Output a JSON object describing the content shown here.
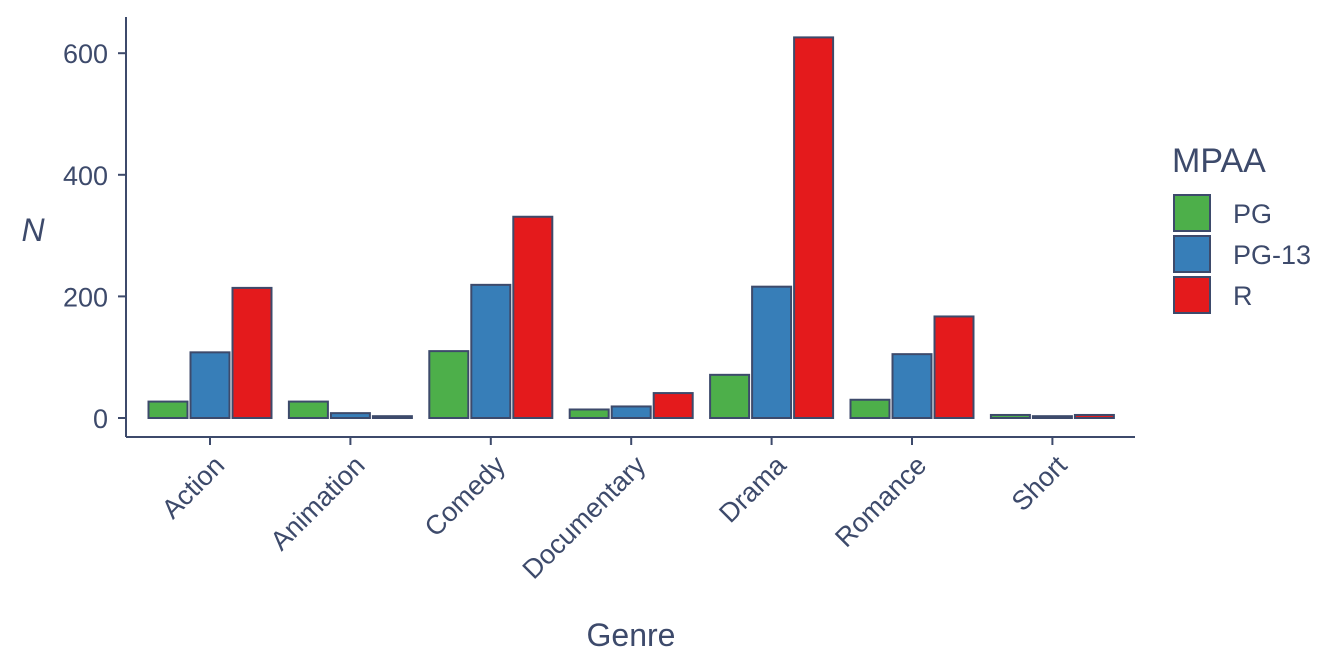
{
  "chart_data": {
    "type": "bar",
    "xlabel": "Genre",
    "ylabel": "N",
    "categories": [
      "Action",
      "Animation",
      "Comedy",
      "Documentary",
      "Drama",
      "Romance",
      "Short"
    ],
    "series": [
      {
        "name": "PG",
        "color": "#4daf4a",
        "values": [
          27,
          27,
          110,
          14,
          71,
          30,
          5
        ]
      },
      {
        "name": "PG-13",
        "color": "#377eb8",
        "values": [
          108,
          8,
          219,
          19,
          216,
          105,
          3
        ]
      },
      {
        "name": "R",
        "color": "#e41a1c",
        "values": [
          214,
          3,
          331,
          41,
          626,
          167,
          5
        ]
      }
    ],
    "ylim": [
      0,
      660
    ],
    "yticks": [
      0,
      200,
      400,
      600
    ],
    "grid": false,
    "legend": {
      "title": "MPAA",
      "position": "right"
    },
    "colors": {
      "axis": "#3d4a6b",
      "bar_outline": "#3d4a6b"
    }
  }
}
